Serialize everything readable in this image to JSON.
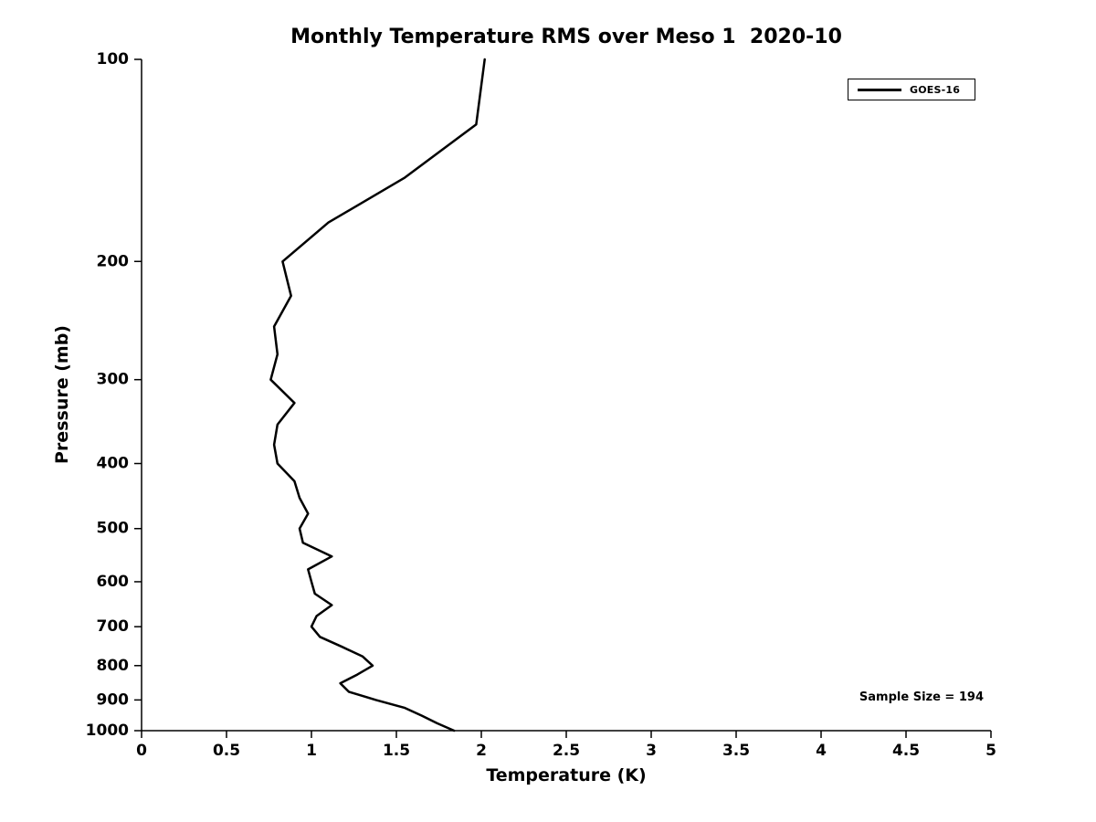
{
  "chart_data": {
    "type": "line",
    "title": "Monthly Temperature RMS over Meso 1  2020-10",
    "xlabel": "Temperature (K)",
    "ylabel": "Pressure (mb)",
    "xlim": [
      0,
      5
    ],
    "ylim": [
      100,
      1000
    ],
    "y_scale": "log",
    "y_inverted": true,
    "grid": false,
    "axis_color": "#000000",
    "background_color": "#ffffff",
    "xticks": {
      "values": [
        0,
        0.5,
        1,
        1.5,
        2,
        2.5,
        3,
        3.5,
        4,
        4.5,
        5
      ],
      "labels": [
        "0",
        "0.5",
        "1",
        "1.5",
        "2",
        "2.5",
        "3",
        "3.5",
        "4",
        "4.5",
        "5"
      ]
    },
    "yticks": {
      "values": [
        100,
        200,
        300,
        400,
        500,
        600,
        700,
        800,
        900,
        1000
      ],
      "labels": [
        "100",
        "200",
        "300",
        "400",
        "500",
        "600",
        "700",
        "800",
        "900",
        "1000"
      ]
    },
    "legend": {
      "position": "top-right",
      "entries": [
        {
          "label": "GOES-16",
          "color": "#000000"
        }
      ]
    },
    "annotation": "Sample Size = 194",
    "series": [
      {
        "name": "GOES-16",
        "color": "#000000",
        "line_width": 2.5,
        "pressure_mb": [
          100,
          125,
          150,
          175,
          200,
          225,
          250,
          275,
          300,
          325,
          350,
          375,
          400,
          425,
          450,
          475,
          500,
          525,
          550,
          575,
          600,
          625,
          650,
          675,
          700,
          725,
          750,
          775,
          800,
          825,
          850,
          875,
          900,
          925,
          950,
          975,
          1000
        ],
        "rms_K": [
          2.02,
          1.97,
          1.55,
          1.1,
          0.83,
          0.88,
          0.78,
          0.8,
          0.76,
          0.9,
          0.8,
          0.78,
          0.8,
          0.9,
          0.93,
          0.98,
          0.93,
          0.95,
          1.12,
          0.98,
          1.0,
          1.02,
          1.12,
          1.03,
          1.0,
          1.05,
          1.18,
          1.3,
          1.36,
          1.27,
          1.17,
          1.22,
          1.38,
          1.55,
          1.65,
          1.74,
          1.84
        ]
      }
    ]
  }
}
